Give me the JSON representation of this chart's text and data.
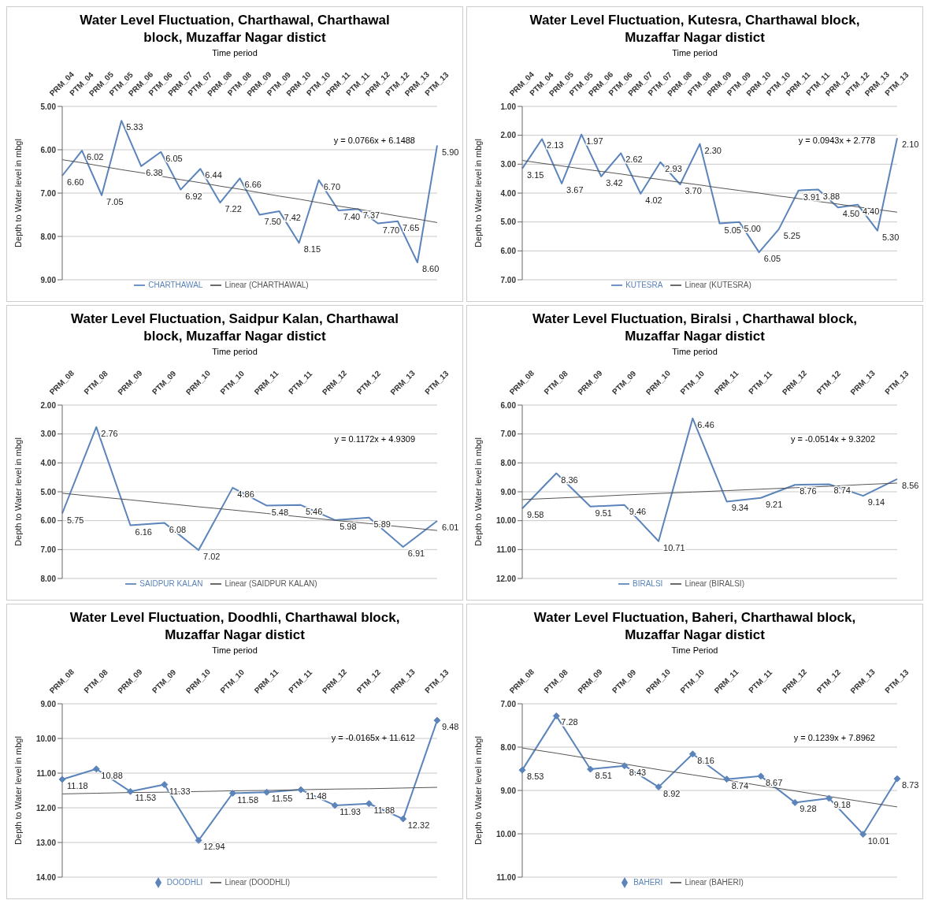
{
  "chart_data": [
    {
      "type": "line",
      "title": "Water Level Fluctuation, Charthawal, Charthawal block, Muzaffar Nagar distict",
      "xlabel": "Time period",
      "ylabel": "Depth to Water level in mbgl",
      "annotations": [
        "y = 0.0766x + 6.1488"
      ],
      "categories": [
        "PRM_04",
        "PTM_04",
        "PRM_05",
        "PTM_05",
        "PRM_06",
        "PTM_06",
        "PRM_07",
        "PTM_07",
        "PRM_08",
        "PTM_08",
        "PRM_09",
        "PTM_09",
        "PRM_10",
        "PTM_10",
        "PRM_11",
        "PTM_11",
        "PRM_12",
        "PTM_12",
        "PRM_13",
        "PTM_13"
      ],
      "series": [
        {
          "name": "CHARTHAWAL",
          "color": "#5b84bb",
          "values": [
            6.6,
            6.02,
            7.05,
            5.33,
            6.38,
            6.05,
            6.92,
            6.44,
            7.22,
            6.66,
            7.5,
            7.42,
            8.15,
            6.7,
            7.4,
            7.37,
            7.7,
            7.65,
            8.6,
            5.9
          ],
          "value_labels": [
            "6.60",
            "6.02",
            "7.05",
            "5.33",
            "6.38",
            "6.05",
            "6.92",
            "6.44",
            "7.22",
            "6.66",
            "7.50",
            "7.42",
            "8.15",
            "6.70",
            "7.40",
            "7.37",
            "7.70",
            "7.65",
            "8.60",
            "5.90"
          ]
        },
        {
          "name": "Linear (CHARTHAWAL)",
          "color": "#555555",
          "values": [
            6.23,
            6.3,
            6.38,
            6.46,
            6.53,
            6.61,
            6.69,
            6.76,
            6.84,
            6.91,
            6.99,
            7.07,
            7.14,
            7.22,
            7.3,
            7.37,
            7.45,
            7.53,
            7.6,
            7.68
          ]
        }
      ],
      "ylim": [
        9,
        5
      ],
      "yticks": [
        {
          "value": 5,
          "label": "5.00"
        },
        {
          "value": 6,
          "label": "6.00"
        },
        {
          "value": 7,
          "label": "7.00"
        },
        {
          "value": 8,
          "label": "8.00"
        },
        {
          "value": 9,
          "label": "9.00"
        }
      ],
      "grid": "y",
      "legend": "bottom",
      "marker": "none",
      "line_style": "solid"
    },
    {
      "type": "line",
      "title": "Water Level Fluctuation, Kutesra, Charthawal block, Muzaffar Nagar distict",
      "xlabel": "Time period",
      "ylabel": "Depth to Water level in mbgl",
      "annotations": [
        "y = 0.0943x + 2.778"
      ],
      "categories": [
        "PRM_04",
        "PTM_04",
        "PRM_05",
        "PTM_05",
        "PRM_06",
        "PTM_06",
        "PRM_07",
        "PTM_07",
        "PRM_08",
        "PTM_08",
        "PRM_09",
        "PTM_09",
        "PRM_10",
        "PTM_10",
        "PRM_11",
        "PTM_11",
        "PRM_12",
        "PTM_12",
        "PRM_13",
        "PTM_13"
      ],
      "series": [
        {
          "name": "KUTESRA",
          "color": "#5b84bb",
          "values": [
            3.15,
            2.13,
            3.67,
            1.97,
            3.42,
            2.62,
            4.02,
            2.93,
            3.7,
            2.3,
            5.05,
            5.0,
            6.05,
            5.25,
            3.91,
            3.88,
            4.5,
            4.4,
            5.3,
            2.1
          ],
          "value_labels": [
            "3.15",
            "2.13",
            "3.67",
            "1.97",
            "3.42",
            "2.62",
            "4.02",
            "2.93",
            "3.70",
            "2.30",
            "5.05",
            "5.00",
            "6.05",
            "5.25",
            "3.91",
            "3.88",
            "4.50",
            "4.40",
            "5.30",
            "2.10"
          ]
        },
        {
          "name": "Linear (KUTESRA)",
          "color": "#555555",
          "values": [
            2.87,
            2.97,
            3.06,
            3.16,
            3.25,
            3.34,
            3.44,
            3.53,
            3.63,
            3.72,
            3.82,
            3.91,
            4.0,
            4.1,
            4.19,
            4.29,
            4.38,
            4.48,
            4.57,
            4.66
          ]
        }
      ],
      "ylim": [
        7,
        1
      ],
      "yticks": [
        {
          "value": 1,
          "label": "1.00"
        },
        {
          "value": 2,
          "label": "2.00"
        },
        {
          "value": 3,
          "label": "3.00"
        },
        {
          "value": 4,
          "label": "4.00"
        },
        {
          "value": 5,
          "label": "5.00"
        },
        {
          "value": 6,
          "label": "6.00"
        },
        {
          "value": 7,
          "label": "7.00"
        }
      ],
      "grid": "y",
      "legend": "bottom",
      "marker": "none",
      "line_style": "solid"
    },
    {
      "type": "line",
      "title": "Water Level Fluctuation, Saidpur Kalan, Charthawal block, Muzaffar Nagar distict",
      "xlabel": "Time period",
      "ylabel": "Depth to Water level in mbgl",
      "annotations": [
        "y = 0.1172x + 4.9309"
      ],
      "categories": [
        "PRM_08",
        "PTM_08",
        "PRM_09",
        "PTM_09",
        "PRM_10",
        "PTM_10",
        "PRM_11",
        "PTM_11",
        "PRM_12",
        "PTM_12",
        "PRM_13",
        "PTM_13"
      ],
      "series": [
        {
          "name": "SAIDPUR KALAN",
          "color": "#5b84bb",
          "values": [
            5.75,
            2.76,
            6.16,
            6.08,
            7.02,
            4.86,
            5.48,
            5.46,
            5.98,
            5.89,
            6.91,
            6.01
          ],
          "value_labels": [
            "5.75",
            "2.76",
            "6.16",
            "6.08",
            "7.02",
            "4.86",
            "5.48",
            "5.46",
            "5.98",
            "5.89",
            "6.91",
            "6.01"
          ]
        },
        {
          "name": "Linear (SAIDPUR KALAN)",
          "color": "#555555",
          "values": [
            5.05,
            5.17,
            5.28,
            5.4,
            5.52,
            5.63,
            5.75,
            5.87,
            5.99,
            6.1,
            6.22,
            6.34
          ]
        }
      ],
      "ylim": [
        8,
        2
      ],
      "yticks": [
        {
          "value": 2,
          "label": "2.00"
        },
        {
          "value": 3,
          "label": "3.00"
        },
        {
          "value": 4,
          "label": "4.00"
        },
        {
          "value": 5,
          "label": "5.00"
        },
        {
          "value": 6,
          "label": "6.00"
        },
        {
          "value": 7,
          "label": "7.00"
        },
        {
          "value": 8,
          "label": "8.00"
        }
      ],
      "grid": "y",
      "legend": "bottom",
      "marker": "none",
      "line_style": "solid"
    },
    {
      "type": "line",
      "title": "Water Level Fluctuation, Biralsi , Charthawal block, Muzaffar Nagar distict",
      "xlabel": "Time period",
      "ylabel": "Depth to Water level in mbgl",
      "annotations": [
        "y = -0.0514x + 9.3202"
      ],
      "categories": [
        "PRM_08",
        "PTM_08",
        "PRM_09",
        "PTM_09",
        "PRM_10",
        "PTM_10",
        "PRM_11",
        "PTM_11",
        "PRM_12",
        "PTM_12",
        "PRM_13",
        "PTM_13"
      ],
      "series": [
        {
          "name": "BIRALSI",
          "color": "#5b84bb",
          "values": [
            9.58,
            8.36,
            9.51,
            9.46,
            10.71,
            6.46,
            9.34,
            9.21,
            8.76,
            8.74,
            9.14,
            8.56
          ],
          "value_labels": [
            "9.58",
            "8.36",
            "9.51",
            "9.46",
            "10.71",
            "6.46",
            "9.34",
            "9.21",
            "8.76",
            "8.74",
            "9.14",
            "8.56"
          ]
        },
        {
          "name": "Linear (BIRALSI)",
          "color": "#555555",
          "values": [
            9.27,
            9.22,
            9.17,
            9.11,
            9.06,
            9.01,
            8.96,
            8.91,
            8.86,
            8.81,
            8.75,
            8.7
          ]
        }
      ],
      "ylim": [
        12,
        6
      ],
      "yticks": [
        {
          "value": 6,
          "label": "6.00"
        },
        {
          "value": 7,
          "label": "7.00"
        },
        {
          "value": 8,
          "label": "8.00"
        },
        {
          "value": 9,
          "label": "9.00"
        },
        {
          "value": 10,
          "label": "10.00"
        },
        {
          "value": 11,
          "label": "11.00"
        },
        {
          "value": 12,
          "label": "12.00"
        }
      ],
      "grid": "y",
      "legend": "bottom",
      "marker": "none",
      "line_style": "solid"
    },
    {
      "type": "line",
      "title": "Water Level Fluctuation, Doodhli, Charthawal block, Muzaffar Nagar distict",
      "xlabel": "Time period",
      "ylabel": "Depth to Water level in mbgl",
      "annotations": [
        "y = -0.0165x + 11.612"
      ],
      "categories": [
        "PRM_08",
        "PTM_08",
        "PRM_09",
        "PTM_09",
        "PRM_10",
        "PTM_10",
        "PRM_11",
        "PTM_11",
        "PRM_12",
        "PTM_12",
        "PRM_13",
        "PTM_13"
      ],
      "series": [
        {
          "name": "DOODHLI",
          "color": "#5b84bb",
          "marker": "diamond",
          "values": [
            11.18,
            10.88,
            11.53,
            11.33,
            12.94,
            11.58,
            11.55,
            11.48,
            11.93,
            11.88,
            12.32,
            9.48
          ],
          "value_labels": [
            "11.18",
            "10.88",
            "11.53",
            "11.33",
            "12.94",
            "11.58",
            "11.55",
            "11.48",
            "11.93",
            "11.88",
            "12.32",
            "9.48"
          ]
        },
        {
          "name": "Linear (DOODHLI)",
          "color": "#555555",
          "marker": "none",
          "values": [
            11.6,
            11.58,
            11.56,
            11.55,
            11.53,
            11.51,
            11.5,
            11.48,
            11.46,
            11.45,
            11.43,
            11.41
          ]
        }
      ],
      "ylim": [
        14,
        9
      ],
      "yticks": [
        {
          "value": 9,
          "label": "9.00"
        },
        {
          "value": 10,
          "label": "10.00"
        },
        {
          "value": 11,
          "label": "11.00"
        },
        {
          "value": 12,
          "label": "12.00"
        },
        {
          "value": 13,
          "label": "13.00"
        },
        {
          "value": 14,
          "label": "14.00"
        }
      ],
      "grid": "y",
      "legend": "bottom",
      "line_style": "solid"
    },
    {
      "type": "line",
      "title": "Water Level Fluctuation, Baheri, Charthawal block, Muzaffar Nagar distict",
      "xlabel": "Time Period",
      "ylabel": "Depth to Water level in mbgl",
      "annotations": [
        "y = 0.1239x + 7.8962"
      ],
      "categories": [
        "PRM_08",
        "PTM_08",
        "PRM_09",
        "PTM_09",
        "PRM_10",
        "PTM_10",
        "PRM_11",
        "PTM_11",
        "PRM_12",
        "PTM_12",
        "PRM_13",
        "PTM_13"
      ],
      "series": [
        {
          "name": "BAHERI",
          "color": "#5b84bb",
          "marker": "diamond",
          "values": [
            8.53,
            7.28,
            8.51,
            8.43,
            8.92,
            8.16,
            8.74,
            8.67,
            9.28,
            9.18,
            10.01,
            8.73
          ],
          "value_labels": [
            "8.53",
            "7.28",
            "8.51",
            "8.43",
            "8.92",
            "8.16",
            "8.74",
            "8.67",
            "9.28",
            "9.18",
            "10.01",
            "8.73"
          ]
        },
        {
          "name": "Linear (BAHERI)",
          "color": "#555555",
          "marker": "none",
          "values": [
            8.02,
            8.14,
            8.27,
            8.39,
            8.52,
            8.64,
            8.76,
            8.89,
            9.01,
            9.14,
            9.26,
            9.38
          ]
        }
      ],
      "ylim": [
        11,
        7
      ],
      "yticks": [
        {
          "value": 7,
          "label": "7.00"
        },
        {
          "value": 8,
          "label": "8.00"
        },
        {
          "value": 9,
          "label": "9.00"
        },
        {
          "value": 10,
          "label": "10.00"
        },
        {
          "value": 11,
          "label": "11.00"
        }
      ],
      "grid": "y",
      "legend": "bottom",
      "line_style": "solid"
    }
  ]
}
